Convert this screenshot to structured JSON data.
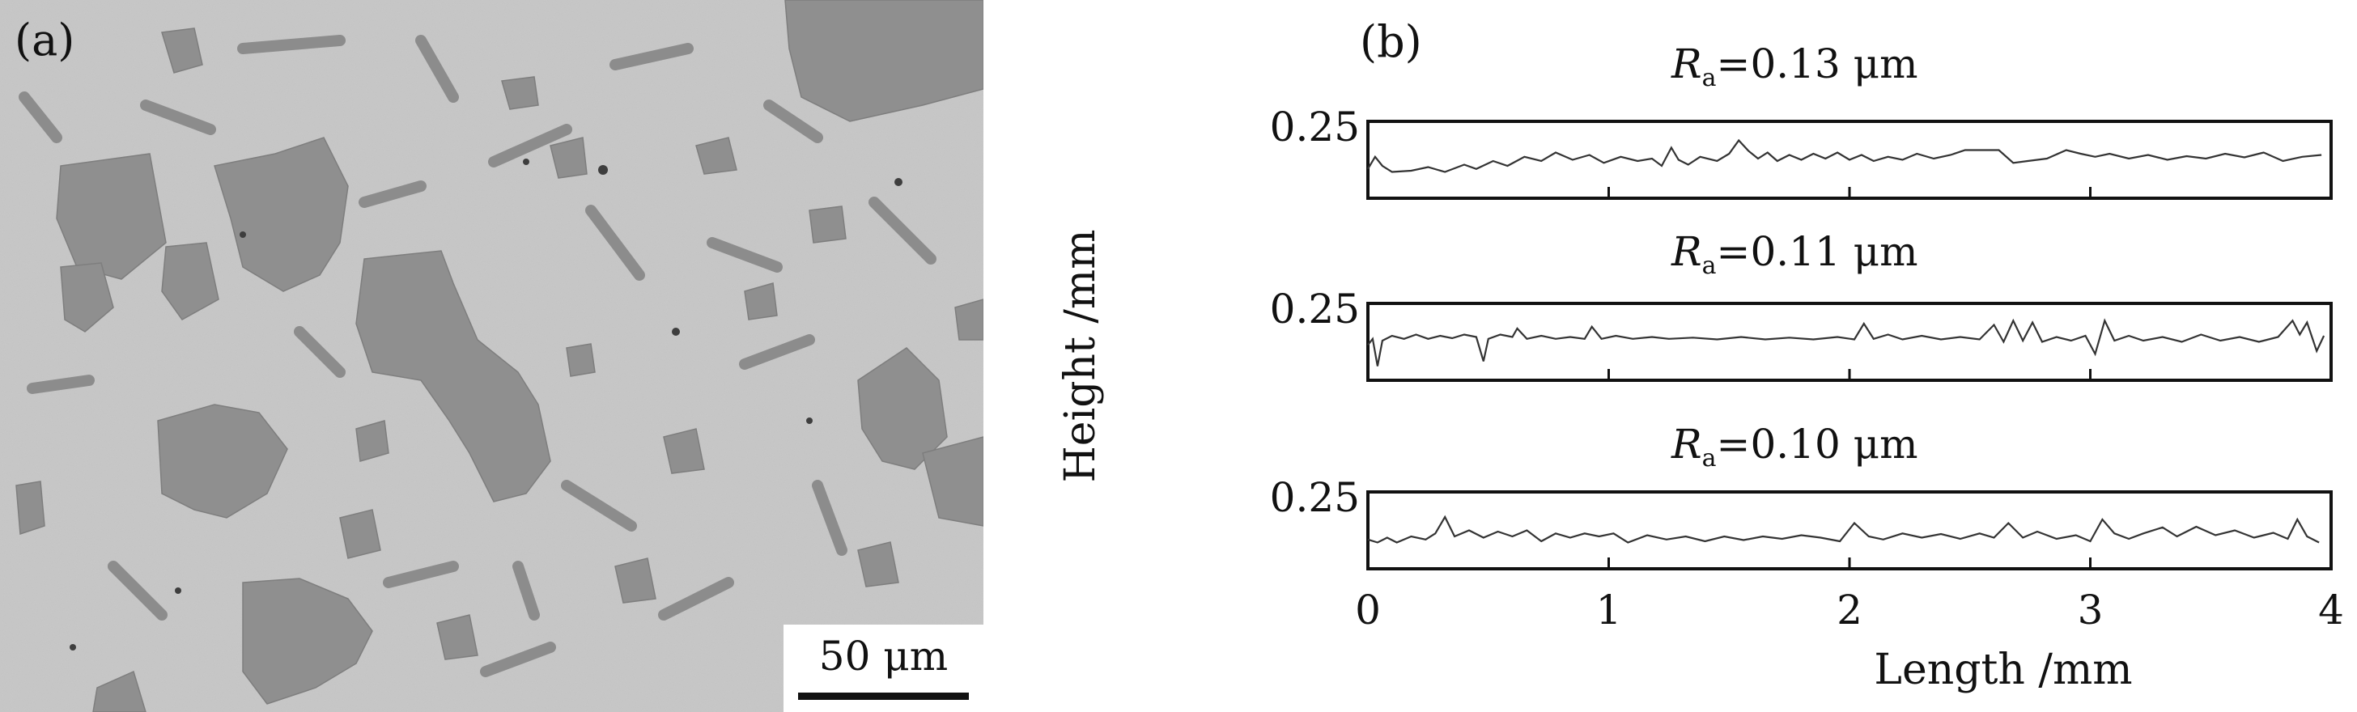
{
  "panel_a": {
    "label": "(a)",
    "scale_bar": "50 μm"
  },
  "panel_b": {
    "label": "(b)"
  },
  "chart_data": {
    "type": "line",
    "xlabel": "Length /mm",
    "ylabel": "Height /mm",
    "xlim": [
      0,
      4
    ],
    "x_ticks": [
      "0",
      "1",
      "2",
      "3",
      "4"
    ],
    "grid": false,
    "subplots": [
      {
        "ra_symbol": "R",
        "ra_subscript": "a",
        "ra_value": "=0.13 μm",
        "y_tick": "0.25",
        "profile": [
          [
            0.0,
            0.35
          ],
          [
            0.03,
            0.55
          ],
          [
            0.06,
            0.4
          ],
          [
            0.1,
            0.3
          ],
          [
            0.18,
            0.32
          ],
          [
            0.25,
            0.38
          ],
          [
            0.32,
            0.3
          ],
          [
            0.4,
            0.42
          ],
          [
            0.45,
            0.35
          ],
          [
            0.52,
            0.48
          ],
          [
            0.58,
            0.4
          ],
          [
            0.65,
            0.55
          ],
          [
            0.72,
            0.48
          ],
          [
            0.78,
            0.62
          ],
          [
            0.85,
            0.5
          ],
          [
            0.92,
            0.58
          ],
          [
            0.98,
            0.45
          ],
          [
            1.05,
            0.55
          ],
          [
            1.12,
            0.48
          ],
          [
            1.18,
            0.52
          ],
          [
            1.22,
            0.4
          ],
          [
            1.26,
            0.7
          ],
          [
            1.29,
            0.5
          ],
          [
            1.33,
            0.42
          ],
          [
            1.38,
            0.55
          ],
          [
            1.45,
            0.48
          ],
          [
            1.5,
            0.6
          ],
          [
            1.54,
            0.82
          ],
          [
            1.58,
            0.65
          ],
          [
            1.62,
            0.52
          ],
          [
            1.66,
            0.62
          ],
          [
            1.7,
            0.48
          ],
          [
            1.75,
            0.58
          ],
          [
            1.8,
            0.5
          ],
          [
            1.85,
            0.6
          ],
          [
            1.9,
            0.52
          ],
          [
            1.95,
            0.62
          ],
          [
            2.0,
            0.5
          ],
          [
            2.05,
            0.58
          ],
          [
            2.1,
            0.48
          ],
          [
            2.16,
            0.55
          ],
          [
            2.22,
            0.5
          ],
          [
            2.28,
            0.6
          ],
          [
            2.35,
            0.52
          ],
          [
            2.42,
            0.58
          ],
          [
            2.48,
            0.66
          ],
          [
            2.55,
            0.66
          ],
          [
            2.62,
            0.66
          ],
          [
            2.68,
            0.45
          ],
          [
            2.74,
            0.48
          ],
          [
            2.82,
            0.52
          ],
          [
            2.9,
            0.66
          ],
          [
            2.96,
            0.6
          ],
          [
            3.02,
            0.55
          ],
          [
            3.08,
            0.6
          ],
          [
            3.16,
            0.52
          ],
          [
            3.24,
            0.58
          ],
          [
            3.32,
            0.5
          ],
          [
            3.4,
            0.56
          ],
          [
            3.48,
            0.52
          ],
          [
            3.56,
            0.6
          ],
          [
            3.64,
            0.54
          ],
          [
            3.72,
            0.62
          ],
          [
            3.8,
            0.48
          ],
          [
            3.88,
            0.55
          ],
          [
            3.96,
            0.58
          ]
        ]
      },
      {
        "ra_symbol": "R",
        "ra_subscript": "a",
        "ra_value": "=0.11 μm",
        "y_tick": "0.25",
        "profile": [
          [
            0.0,
            0.45
          ],
          [
            0.02,
            0.55
          ],
          [
            0.04,
            0.1
          ],
          [
            0.06,
            0.52
          ],
          [
            0.1,
            0.6
          ],
          [
            0.15,
            0.55
          ],
          [
            0.2,
            0.62
          ],
          [
            0.25,
            0.55
          ],
          [
            0.3,
            0.6
          ],
          [
            0.35,
            0.56
          ],
          [
            0.4,
            0.62
          ],
          [
            0.45,
            0.58
          ],
          [
            0.48,
            0.18
          ],
          [
            0.5,
            0.55
          ],
          [
            0.55,
            0.62
          ],
          [
            0.6,
            0.58
          ],
          [
            0.62,
            0.72
          ],
          [
            0.66,
            0.55
          ],
          [
            0.72,
            0.6
          ],
          [
            0.78,
            0.55
          ],
          [
            0.84,
            0.58
          ],
          [
            0.9,
            0.55
          ],
          [
            0.93,
            0.75
          ],
          [
            0.97,
            0.55
          ],
          [
            1.03,
            0.6
          ],
          [
            1.1,
            0.55
          ],
          [
            1.18,
            0.58
          ],
          [
            1.25,
            0.55
          ],
          [
            1.35,
            0.57
          ],
          [
            1.45,
            0.54
          ],
          [
            1.55,
            0.58
          ],
          [
            1.65,
            0.54
          ],
          [
            1.75,
            0.57
          ],
          [
            1.85,
            0.54
          ],
          [
            1.95,
            0.58
          ],
          [
            2.02,
            0.54
          ],
          [
            2.06,
            0.8
          ],
          [
            2.1,
            0.55
          ],
          [
            2.16,
            0.62
          ],
          [
            2.22,
            0.54
          ],
          [
            2.3,
            0.6
          ],
          [
            2.38,
            0.54
          ],
          [
            2.46,
            0.58
          ],
          [
            2.54,
            0.54
          ],
          [
            2.6,
            0.78
          ],
          [
            2.64,
            0.5
          ],
          [
            2.68,
            0.85
          ],
          [
            2.72,
            0.52
          ],
          [
            2.76,
            0.82
          ],
          [
            2.8,
            0.5
          ],
          [
            2.86,
            0.58
          ],
          [
            2.92,
            0.52
          ],
          [
            2.98,
            0.6
          ],
          [
            3.02,
            0.3
          ],
          [
            3.06,
            0.85
          ],
          [
            3.1,
            0.52
          ],
          [
            3.16,
            0.6
          ],
          [
            3.22,
            0.52
          ],
          [
            3.3,
            0.58
          ],
          [
            3.38,
            0.5
          ],
          [
            3.46,
            0.62
          ],
          [
            3.54,
            0.52
          ],
          [
            3.62,
            0.58
          ],
          [
            3.7,
            0.5
          ],
          [
            3.78,
            0.58
          ],
          [
            3.84,
            0.85
          ],
          [
            3.87,
            0.62
          ],
          [
            3.9,
            0.82
          ],
          [
            3.94,
            0.35
          ],
          [
            3.97,
            0.6
          ]
        ]
      },
      {
        "ra_symbol": "R",
        "ra_subscript": "a",
        "ra_value": "=0.10 μm",
        "y_tick": "0.25",
        "profile": [
          [
            0.0,
            0.35
          ],
          [
            0.04,
            0.3
          ],
          [
            0.08,
            0.38
          ],
          [
            0.12,
            0.3
          ],
          [
            0.18,
            0.4
          ],
          [
            0.24,
            0.35
          ],
          [
            0.28,
            0.45
          ],
          [
            0.32,
            0.72
          ],
          [
            0.36,
            0.4
          ],
          [
            0.42,
            0.5
          ],
          [
            0.48,
            0.38
          ],
          [
            0.54,
            0.48
          ],
          [
            0.6,
            0.4
          ],
          [
            0.66,
            0.5
          ],
          [
            0.72,
            0.32
          ],
          [
            0.78,
            0.45
          ],
          [
            0.84,
            0.38
          ],
          [
            0.9,
            0.45
          ],
          [
            0.96,
            0.4
          ],
          [
            1.02,
            0.45
          ],
          [
            1.08,
            0.3
          ],
          [
            1.16,
            0.42
          ],
          [
            1.24,
            0.35
          ],
          [
            1.32,
            0.4
          ],
          [
            1.4,
            0.32
          ],
          [
            1.48,
            0.4
          ],
          [
            1.56,
            0.34
          ],
          [
            1.64,
            0.4
          ],
          [
            1.72,
            0.36
          ],
          [
            1.8,
            0.42
          ],
          [
            1.88,
            0.38
          ],
          [
            1.96,
            0.32
          ],
          [
            2.02,
            0.62
          ],
          [
            2.08,
            0.4
          ],
          [
            2.14,
            0.35
          ],
          [
            2.22,
            0.45
          ],
          [
            2.3,
            0.38
          ],
          [
            2.38,
            0.44
          ],
          [
            2.46,
            0.36
          ],
          [
            2.54,
            0.45
          ],
          [
            2.6,
            0.38
          ],
          [
            2.66,
            0.62
          ],
          [
            2.72,
            0.38
          ],
          [
            2.78,
            0.48
          ],
          [
            2.86,
            0.36
          ],
          [
            2.94,
            0.42
          ],
          [
            3.0,
            0.32
          ],
          [
            3.05,
            0.68
          ],
          [
            3.1,
            0.45
          ],
          [
            3.16,
            0.36
          ],
          [
            3.22,
            0.45
          ],
          [
            3.3,
            0.55
          ],
          [
            3.36,
            0.4
          ],
          [
            3.44,
            0.56
          ],
          [
            3.52,
            0.42
          ],
          [
            3.6,
            0.5
          ],
          [
            3.68,
            0.38
          ],
          [
            3.76,
            0.46
          ],
          [
            3.82,
            0.36
          ],
          [
            3.86,
            0.68
          ],
          [
            3.9,
            0.4
          ],
          [
            3.95,
            0.3
          ]
        ]
      }
    ]
  }
}
